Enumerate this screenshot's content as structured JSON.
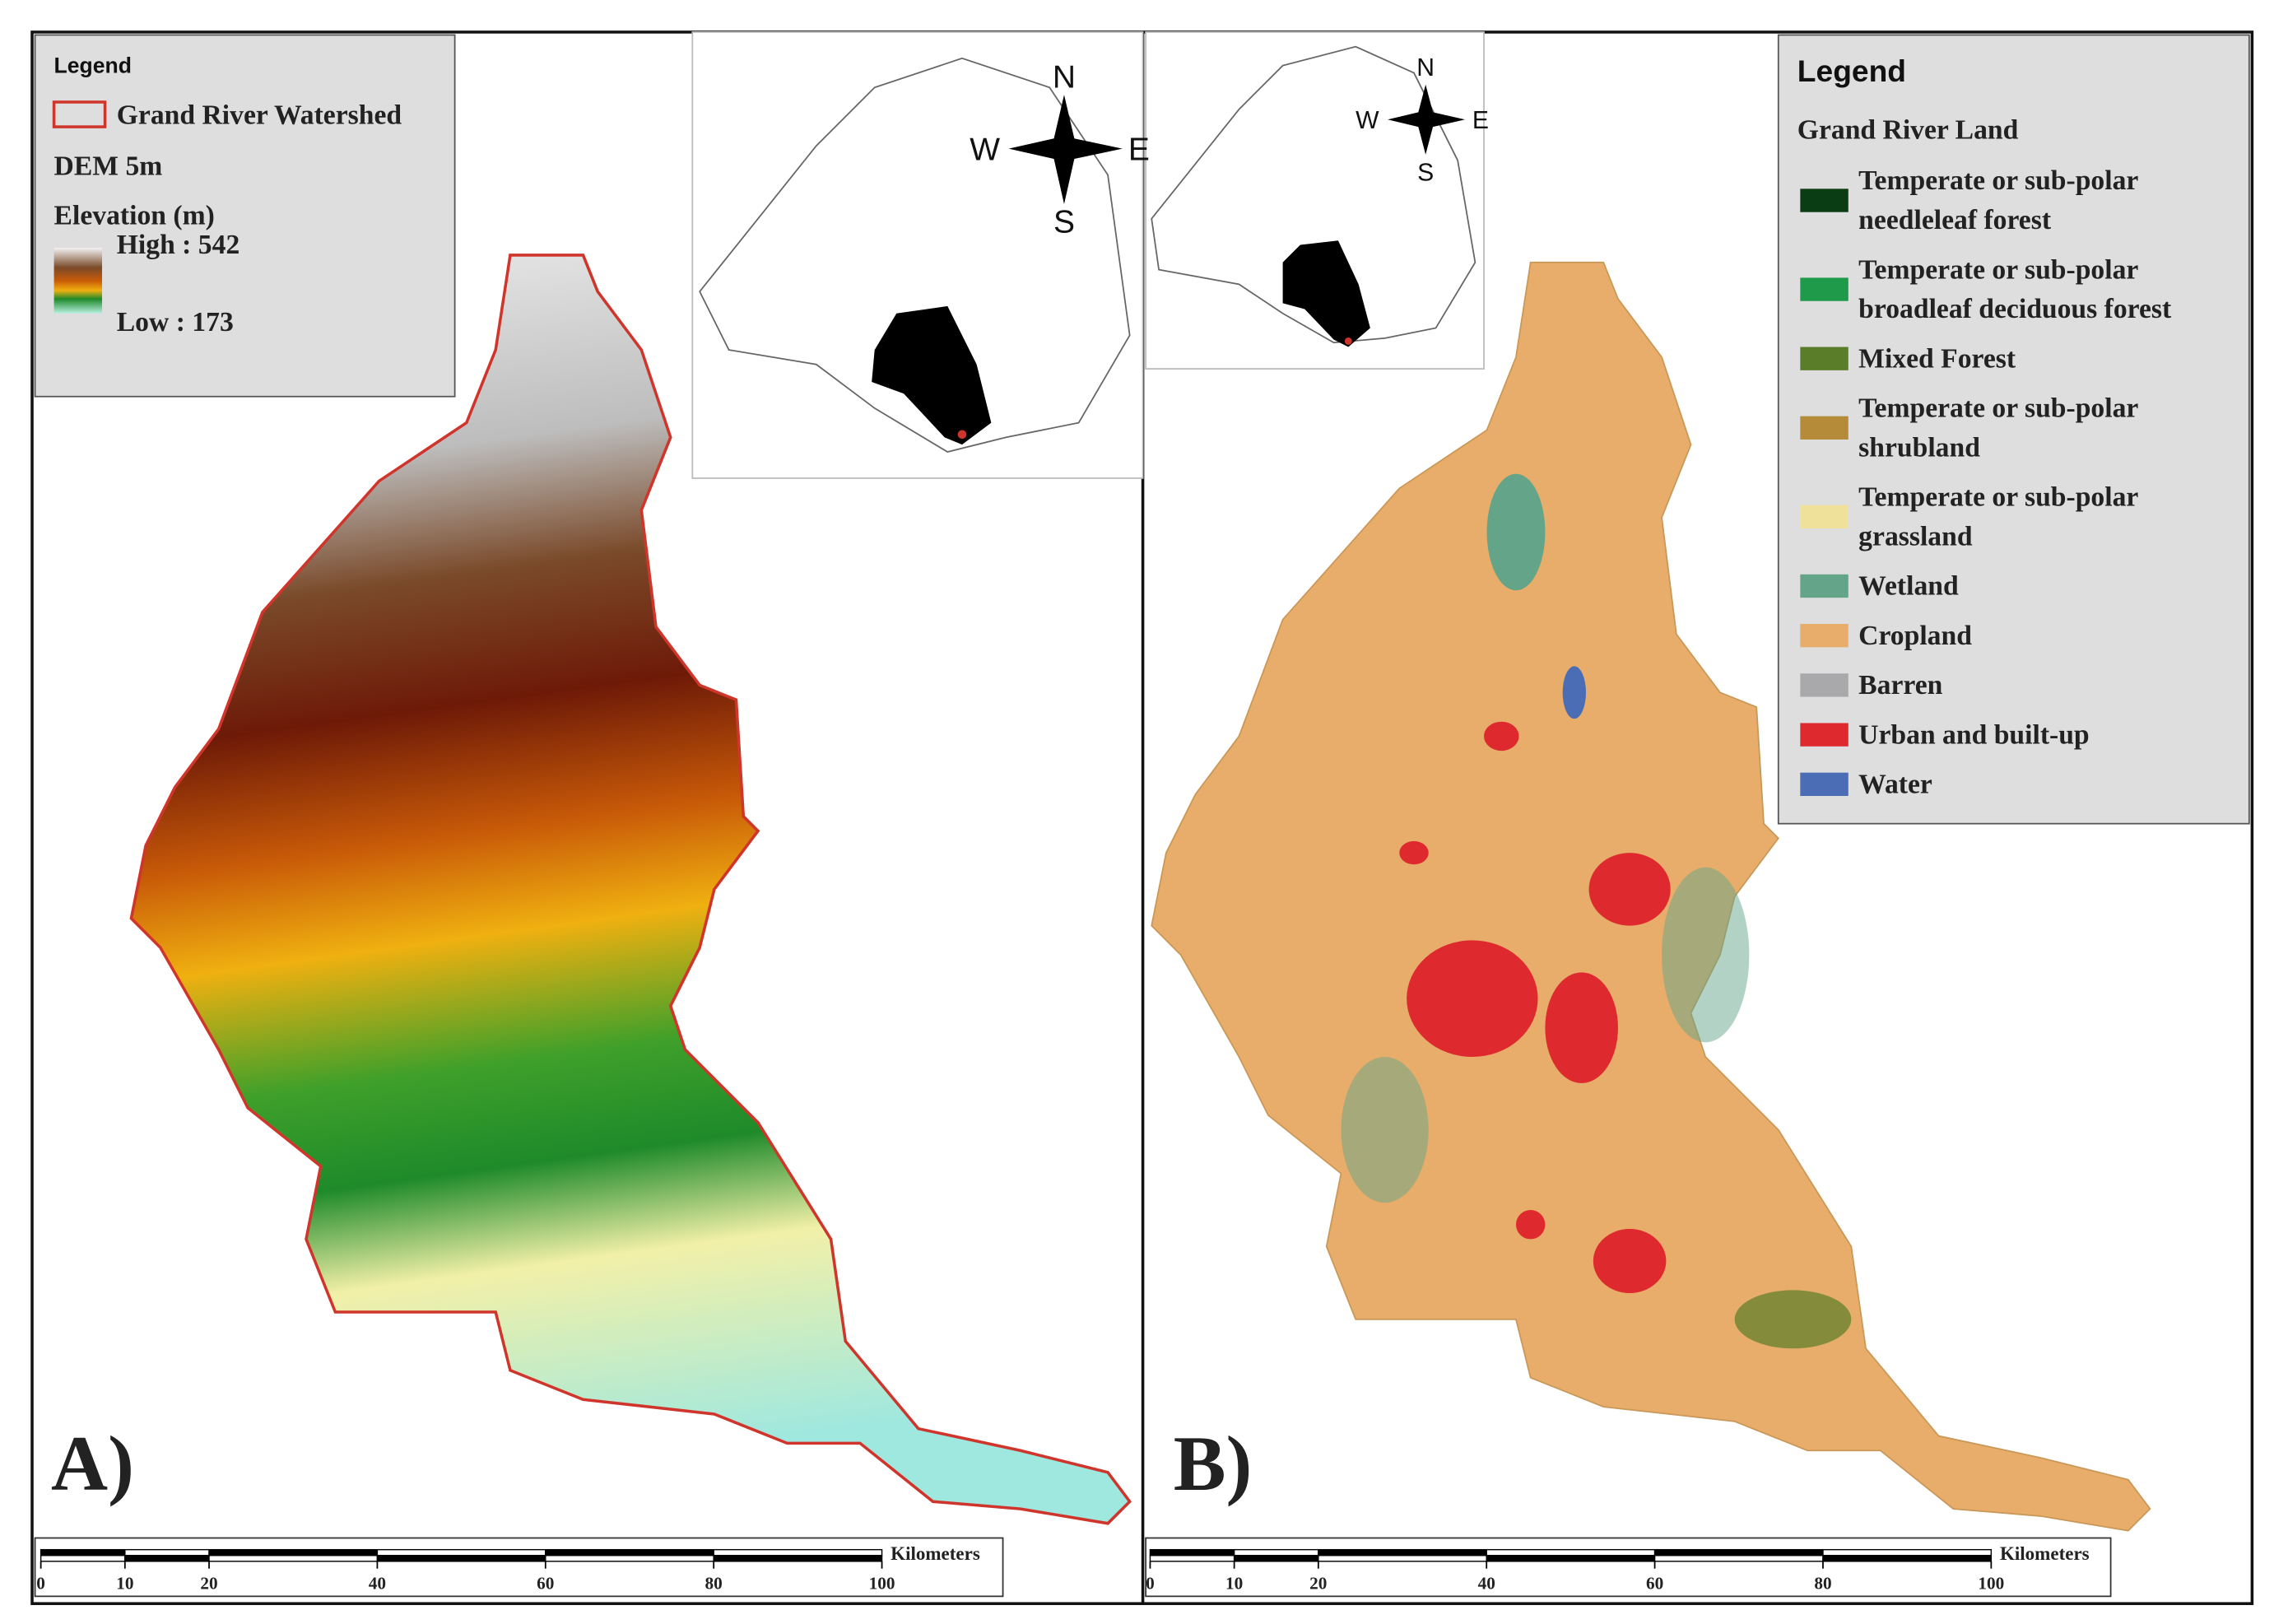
{
  "panels": [
    {
      "label": "A)",
      "legend": {
        "title": "Legend",
        "boundary": "Grand River Watershed",
        "layer": "DEM 5m",
        "field": "Elevation (m)",
        "high": "High : 542",
        "low": "Low : 173",
        "boundary_color": "#d0352b"
      },
      "compass": {
        "n": "N",
        "s": "S",
        "e": "E",
        "w": "W"
      },
      "scale_bar": {
        "unit": "Kilometers",
        "ticks": [
          0,
          10,
          20,
          40,
          60,
          80,
          100
        ]
      }
    },
    {
      "label": "B)",
      "legend": {
        "title": "Legend",
        "subtitle": "Grand River Land",
        "items": [
          {
            "lines": [
              "Temperate or sub-polar",
              "needleleaf forest"
            ],
            "color": "#0b3d14"
          },
          {
            "lines": [
              "Temperate or sub-polar",
              "broadleaf deciduous forest"
            ],
            "color": "#1f9a4a"
          },
          {
            "lines": [
              "Mixed Forest"
            ],
            "color": "#5a7d2a"
          },
          {
            "lines": [
              "Temperate or sub-polar",
              "shrubland"
            ],
            "color": "#b58a38"
          },
          {
            "lines": [
              "Temperate or sub-polar",
              "grassland"
            ],
            "color": "#efe09a"
          },
          {
            "lines": [
              "Wetland"
            ],
            "color": "#64a58a"
          },
          {
            "lines": [
              "Cropland"
            ],
            "color": "#e8ad6a"
          },
          {
            "lines": [
              "Barren"
            ],
            "color": "#a9a9ab"
          },
          {
            "lines": [
              "Urban and built-up"
            ],
            "color": "#de2a2e"
          },
          {
            "lines": [
              "Water"
            ],
            "color": "#4a6db5"
          }
        ]
      },
      "compass": {
        "n": "N",
        "s": "S",
        "e": "E",
        "w": "W"
      },
      "scale_bar": {
        "unit": "Kilometers",
        "ticks": [
          0,
          10,
          20,
          40,
          60,
          80,
          100
        ]
      }
    }
  ]
}
